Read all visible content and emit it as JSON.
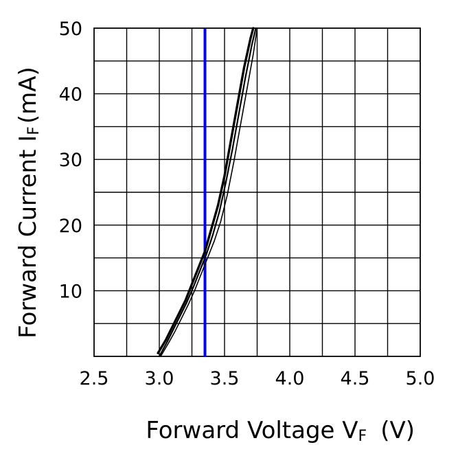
{
  "chart_data": {
    "type": "line",
    "title": "",
    "xlabel": "Forward Voltage V",
    "xlabel_subscript": "F",
    "xlabel_unit": "(V)",
    "ylabel": "Forward Current I",
    "ylabel_subscript": "F",
    "ylabel_unit": "(mA)",
    "xlim": [
      2.5,
      5.0
    ],
    "ylim": [
      0,
      50
    ],
    "x_minor_step": 0.25,
    "y_minor_step": 5,
    "x_ticks": [
      2.5,
      3.0,
      3.5,
      4.0,
      4.5,
      5.0
    ],
    "x_tick_labels": [
      "2.5",
      "3.0",
      "3.5",
      "4.0",
      "4.5",
      "5.0"
    ],
    "y_ticks": [
      10,
      20,
      30,
      40,
      50
    ],
    "y_tick_labels": [
      "10",
      "20",
      "30",
      "40",
      "50"
    ],
    "grid": true,
    "legend": "none",
    "colors": {
      "curve": "#000000",
      "marker_line": "#0000ff",
      "grid": "#000000"
    },
    "vertical_marker": {
      "x": 3.35
    },
    "series": [
      {
        "x": [
          2.99,
          3.05,
          3.1,
          3.15,
          3.2,
          3.25,
          3.3,
          3.35,
          3.4,
          3.45,
          3.5,
          3.55,
          3.6,
          3.65,
          3.7,
          3.72
        ],
        "y": [
          0.5,
          2.5,
          4.5,
          6.5,
          8.5,
          11,
          13.5,
          16,
          19.5,
          23,
          27.5,
          33,
          38.5,
          44,
          48.5,
          50
        ]
      },
      {
        "x": [
          3.0,
          3.06,
          3.11,
          3.16,
          3.21,
          3.26,
          3.31,
          3.36,
          3.41,
          3.46,
          3.51,
          3.56,
          3.61,
          3.66,
          3.71,
          3.74
        ],
        "y": [
          0,
          2.2,
          4.2,
          6.2,
          8.2,
          10.5,
          13,
          15.5,
          18.5,
          22,
          26.5,
          31.5,
          37,
          42.5,
          47.5,
          50
        ]
      },
      {
        "x": [
          3.01,
          3.07,
          3.12,
          3.17,
          3.22,
          3.27,
          3.32,
          3.37,
          3.42,
          3.47,
          3.52,
          3.57,
          3.62,
          3.67,
          3.72,
          3.75
        ],
        "y": [
          0,
          2,
          3.8,
          5.8,
          7.8,
          10,
          12.5,
          15,
          17.5,
          20.5,
          24.5,
          29.5,
          35,
          40.5,
          46,
          50
        ]
      }
    ]
  }
}
